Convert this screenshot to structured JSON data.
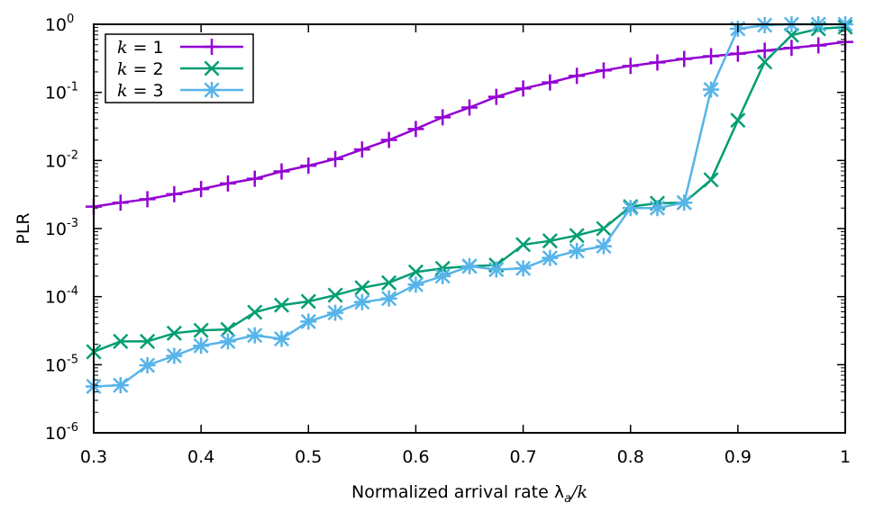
{
  "chart_data": {
    "type": "line",
    "title": "",
    "xlabel": {
      "text": "Normalized arrival rate λ",
      "sub": "a",
      "suffix": "/k"
    },
    "ylabel": "PLR",
    "xlim": [
      0.3,
      1.0
    ],
    "ylim": [
      1e-06,
      1
    ],
    "yscale": "log",
    "grid": false,
    "legend_position": "top-left",
    "x_ticks": [
      "0.3",
      "0.4",
      "0.5",
      "0.6",
      "0.7",
      "0.8",
      "0.9",
      "1"
    ],
    "y_ticks": [
      {
        "base": "10",
        "exp": "0"
      },
      {
        "base": "10",
        "exp": "-1"
      },
      {
        "base": "10",
        "exp": "-2"
      },
      {
        "base": "10",
        "exp": "-3"
      },
      {
        "base": "10",
        "exp": "-4"
      },
      {
        "base": "10",
        "exp": "-5"
      },
      {
        "base": "10",
        "exp": "-6"
      }
    ],
    "x": [
      0.3,
      0.325,
      0.35,
      0.375,
      0.4,
      0.425,
      0.45,
      0.475,
      0.5,
      0.525,
      0.55,
      0.575,
      0.6,
      0.625,
      0.65,
      0.675,
      0.7,
      0.725,
      0.75,
      0.775,
      0.8,
      0.825,
      0.85,
      0.875,
      0.9,
      0.925,
      0.95,
      0.975,
      1.0
    ],
    "series": [
      {
        "name": "k = 1",
        "var": "k",
        "eq": "= 1",
        "color": "#9400d3",
        "marker": "plus",
        "values": [
          0.0021,
          0.0024,
          0.0027,
          0.0032,
          0.0038,
          0.0046,
          0.0054,
          0.0069,
          0.0084,
          0.0105,
          0.0145,
          0.02,
          0.029,
          0.043,
          0.06,
          0.086,
          0.114,
          0.14,
          0.175,
          0.21,
          0.245,
          0.275,
          0.31,
          0.34,
          0.37,
          0.41,
          0.45,
          0.49,
          0.55
        ]
      },
      {
        "name": "k = 2",
        "var": "k",
        "eq": "= 2",
        "color": "#009e73",
        "marker": "cross",
        "values": [
          1.55e-05,
          2.2e-05,
          2.2e-05,
          2.9e-05,
          3.2e-05,
          3.3e-05,
          5.9e-05,
          7.5e-05,
          8.5e-05,
          0.000105,
          0.000135,
          0.00016,
          0.00023,
          0.00026,
          0.00028,
          0.00029,
          0.00058,
          0.00066,
          0.00079,
          0.001,
          0.0021,
          0.00235,
          0.0024,
          0.0052,
          0.039,
          0.28,
          0.69,
          0.86,
          0.91
        ]
      },
      {
        "name": "k = 3",
        "var": "k",
        "eq": "= 3",
        "color": "#56b4e9",
        "marker": "star",
        "values": [
          4.8e-06,
          5e-06,
          9.8e-06,
          1.35e-05,
          1.9e-05,
          2.2e-05,
          2.7e-05,
          2.4e-05,
          4.3e-05,
          5.8e-05,
          8.3e-05,
          9.4e-05,
          0.00015,
          0.0002,
          0.00028,
          0.00025,
          0.00026,
          0.00037,
          0.00047,
          0.00055,
          0.002,
          0.002,
          0.0024,
          0.11,
          0.86,
          0.97,
          1.0,
          1.0,
          1.0
        ]
      }
    ]
  }
}
